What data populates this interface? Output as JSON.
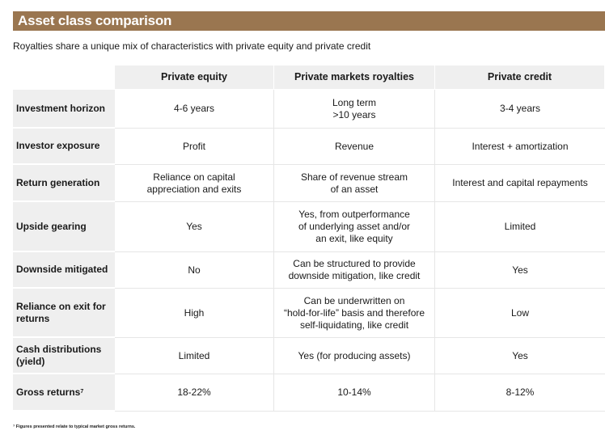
{
  "title": "Asset class comparison",
  "subtitle": "Royalties share a unique mix of characteristics with private equity and private credit",
  "columns": [
    "Private equity",
    "Private markets royalties",
    "Private credit"
  ],
  "rows": [
    {
      "label": "Investment horizon",
      "values": [
        "4-6 years",
        "Long term\n>10 years",
        "3-4 years"
      ]
    },
    {
      "label": "Investor exposure",
      "values": [
        "Profit",
        "Revenue",
        "Interest + amortization"
      ]
    },
    {
      "label": "Return generation",
      "values": [
        "Reliance on capital\nappreciation and exits",
        "Share of revenue stream\nof an asset",
        "Interest and capital repayments"
      ]
    },
    {
      "label": "Upside gearing",
      "values": [
        "Yes",
        "Yes, from outperformance\nof underlying asset and/or\nan exit, like equity",
        "Limited"
      ]
    },
    {
      "label": "Downside mitigated",
      "values": [
        "No",
        "Can be structured to provide\ndownside mitigation, like credit",
        "Yes"
      ]
    },
    {
      "label": "Reliance on exit for returns",
      "values": [
        "High",
        "Can be underwritten on\n“hold-for-life” basis and therefore\nself-liquidating, like credit",
        "Low"
      ]
    },
    {
      "label": "Cash distributions (yield)",
      "values": [
        "Limited",
        "Yes (for producing assets)",
        "Yes"
      ]
    },
    {
      "label": "Gross returns",
      "label_sup": "7",
      "values": [
        "18-22%",
        "10-14%",
        "8-12%"
      ]
    }
  ],
  "footnote": "⁷ Figures presented relate to typical market gross returns.",
  "colors": {
    "title_bar": "#9a7650",
    "header_bg": "#efefef"
  }
}
